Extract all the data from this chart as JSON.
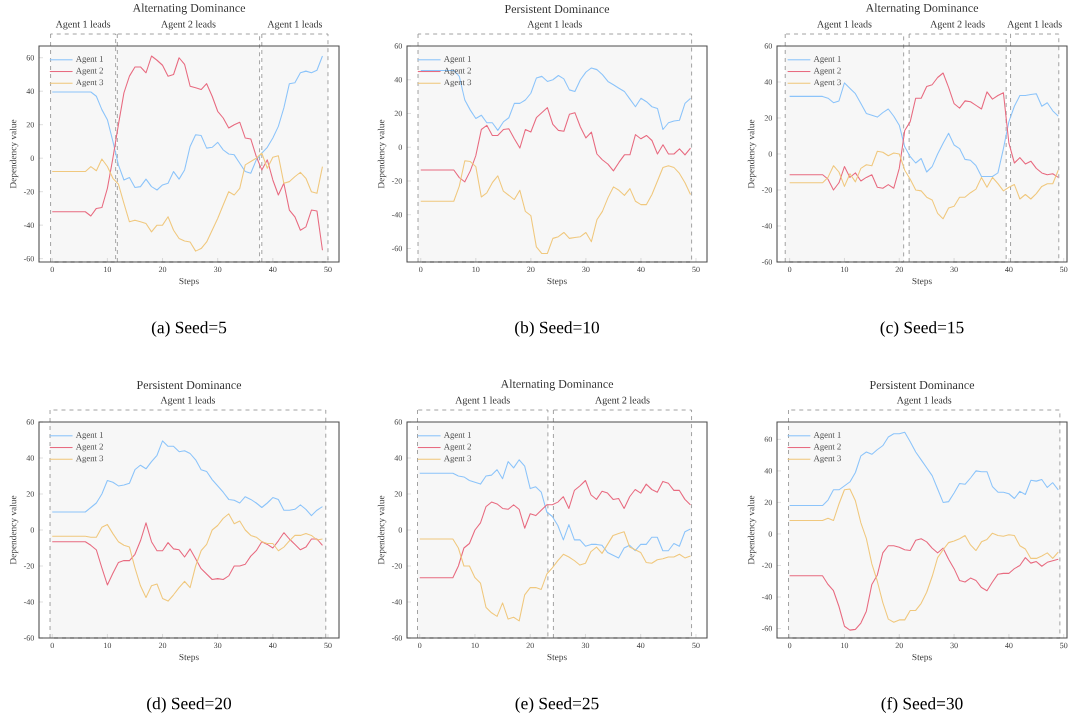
{
  "chart_data": [
    {
      "type": "line",
      "title": "Alternating Dominance",
      "xlabel": "Steps",
      "ylabel": "Dependency value",
      "legend": "top left",
      "xlim": [
        -2.4,
        52
      ],
      "ylim": [
        -62,
        67
      ],
      "xticks": [
        0,
        10,
        20,
        30,
        40,
        50
      ],
      "yticks": [
        -60,
        -40,
        -20,
        0,
        20,
        40,
        60
      ],
      "bands": [
        {
          "axis": "x",
          "from": -0.3,
          "to": 11.5,
          "label": "Agent 1 leads"
        },
        {
          "axis": "x",
          "from": 11.8,
          "to": 37.6,
          "label": "Agent 2 leads"
        },
        {
          "axis": "x",
          "from": 38,
          "to": 50,
          "label": "Agent 1 leads"
        }
      ],
      "annotations": [
        "(a) Seed=5"
      ],
      "x": [
        0,
        1,
        2,
        3,
        4,
        5,
        6,
        7,
        8,
        9,
        10,
        11,
        12,
        13,
        14,
        15,
        16,
        17,
        18,
        19,
        20,
        21,
        22,
        23,
        24,
        25,
        26,
        27,
        28,
        29,
        30,
        31,
        32,
        33,
        34,
        35,
        36,
        37,
        38,
        39,
        40,
        41,
        42,
        43,
        44,
        45,
        46,
        47,
        48,
        49
      ],
      "series": [
        {
          "name": "Agent 1",
          "color": "#8cc4fa",
          "values": [
            39.5,
            39.5,
            39.5,
            39.5,
            39.5,
            39.5,
            39.5,
            39.5,
            37,
            29,
            23,
            10,
            -4,
            -13,
            -11.5,
            -17.5,
            -17,
            -12.5,
            -17,
            -19,
            -16,
            -15,
            -8,
            -12.5,
            -7,
            7,
            14,
            13.5,
            6,
            6.5,
            9.5,
            5,
            2.5,
            2,
            -3,
            -8,
            -9,
            -1,
            3,
            6.5,
            12,
            19,
            30,
            44.5,
            45,
            51,
            52,
            51,
            52.5,
            61
          ]
        },
        {
          "name": "Agent 2",
          "color": "#e86b80",
          "values": [
            -32,
            -32,
            -32,
            -32,
            -32,
            -32,
            -32,
            -34.5,
            -30,
            -29.5,
            -18,
            0,
            20,
            39,
            49,
            54.5,
            54.5,
            51,
            61,
            58.5,
            55.5,
            49,
            50,
            60,
            56,
            43,
            42,
            41,
            44.5,
            37,
            28,
            24,
            18,
            20,
            21.5,
            12,
            11.5,
            1,
            -7,
            -1,
            -13,
            -22,
            -15,
            -31,
            -35,
            -43,
            -41,
            -31,
            -31.5,
            -55
          ]
        },
        {
          "name": "Agent 3",
          "color": "#f0c87e",
          "values": [
            -8,
            -8,
            -8,
            -8,
            -8,
            -8,
            -8,
            -5,
            -7.5,
            -0.5,
            -5,
            -12,
            -15.5,
            -27,
            -38,
            -37,
            -38,
            -39,
            -44,
            -40,
            -40,
            -35,
            -43,
            -48,
            -49.5,
            -50,
            -55.5,
            -54,
            -50,
            -43,
            -36,
            -28,
            -20,
            -22,
            -18,
            -4,
            -2,
            0,
            3,
            -6,
            0.5,
            1.5,
            -15,
            -14,
            -11,
            -8.5,
            -12,
            -20,
            -21,
            -5
          ]
        }
      ]
    },
    {
      "type": "line",
      "title": "Persistent Dominance",
      "xlabel": "Steps",
      "ylabel": "Dependency value",
      "legend": "top left",
      "xlim": [
        -2.5,
        52
      ],
      "ylim": [
        -68,
        60
      ],
      "xticks": [
        0,
        10,
        20,
        30,
        40,
        50
      ],
      "yticks": [
        -60,
        -40,
        -20,
        0,
        20,
        40,
        60
      ],
      "bands": [
        {
          "axis": "x",
          "from": -0.5,
          "to": 49.2,
          "label": "Agent 1 leads"
        }
      ],
      "annotations": [
        "(b) Seed=10"
      ],
      "x": [
        0,
        1,
        2,
        3,
        4,
        5,
        6,
        7,
        8,
        9,
        10,
        11,
        12,
        13,
        14,
        15,
        16,
        17,
        18,
        19,
        20,
        21,
        22,
        23,
        24,
        25,
        26,
        27,
        28,
        29,
        30,
        31,
        32,
        33,
        34,
        35,
        36,
        37,
        38,
        39,
        40,
        41,
        42,
        43,
        44,
        45,
        46,
        47,
        48,
        49
      ],
      "series": [
        {
          "name": "Agent 1",
          "color": "#8cc4fa",
          "values": [
            45.5,
            45.5,
            45.5,
            45.5,
            45.5,
            45.5,
            45.5,
            42,
            28,
            22,
            17,
            19,
            14.5,
            14.5,
            10,
            15,
            17.5,
            26,
            26,
            28,
            32,
            41,
            42,
            39,
            40,
            42.5,
            40.5,
            34,
            33,
            40,
            44.5,
            47,
            46,
            43,
            39,
            37,
            35,
            33,
            28.5,
            24,
            29,
            27,
            24,
            23,
            10.5,
            14.5,
            15.5,
            16,
            26,
            29
          ]
        },
        {
          "name": "Agent 2",
          "color": "#e86b80",
          "values": [
            -13.5,
            -13.5,
            -13.5,
            -13.5,
            -13.5,
            -13.5,
            -13.5,
            -18,
            -20.5,
            -14,
            -5,
            10.5,
            13,
            7,
            7,
            10.5,
            11,
            5,
            -0.5,
            10.5,
            9,
            17.5,
            20.5,
            23.5,
            13.5,
            10,
            9.5,
            19.5,
            20.5,
            12,
            5.5,
            9,
            -4,
            -7.5,
            -10,
            -14,
            -9,
            -4.5,
            -4.5,
            7.5,
            5,
            7,
            4,
            -4,
            1.5,
            -4,
            -4,
            -1,
            -4.5,
            -0.5
          ]
        },
        {
          "name": "Agent 3",
          "color": "#f0c87e",
          "values": [
            -32,
            -32,
            -32,
            -32,
            -32,
            -32,
            -32,
            -23,
            -8,
            -8.5,
            -11.5,
            -29.5,
            -27,
            -21,
            -17,
            -26,
            -28.5,
            -31,
            -25.5,
            -38,
            -40.5,
            -59,
            -63,
            -63,
            -54,
            -53,
            -50.5,
            -54,
            -53.5,
            -53,
            -50.5,
            -56,
            -43,
            -38,
            -30,
            -23.5,
            -25.5,
            -28.5,
            -24.5,
            -32,
            -34,
            -34,
            -28,
            -20,
            -12,
            -11,
            -12,
            -15.5,
            -21,
            -28
          ]
        }
      ]
    },
    {
      "type": "line",
      "title": "Alternating Dominance",
      "xlabel": "Steps",
      "ylabel": "Dependency value",
      "legend": "top left",
      "xlim": [
        -2.3,
        50.6
      ],
      "ylim": [
        -60,
        60
      ],
      "xticks": [
        0,
        10,
        20,
        30,
        40,
        50
      ],
      "yticks": [
        -60,
        -40,
        -20,
        0,
        20,
        40,
        60
      ],
      "bands": [
        {
          "axis": "x",
          "from": -0.8,
          "to": 20.8,
          "label": "Agent 1 leads"
        },
        {
          "axis": "x",
          "from": 21.8,
          "to": 39.5,
          "label": "Agent 2 leads"
        },
        {
          "axis": "x",
          "from": 40.3,
          "to": 49.1,
          "label": "Agent 1 leads"
        }
      ],
      "annotations": [
        "(c) Seed=15"
      ],
      "x": [
        0,
        1,
        2,
        3,
        4,
        5,
        6,
        7,
        8,
        9,
        10,
        11,
        12,
        13,
        14,
        15,
        16,
        17,
        18,
        19,
        20,
        21,
        22,
        23,
        24,
        25,
        26,
        27,
        28,
        29,
        30,
        31,
        32,
        33,
        34,
        35,
        36,
        37,
        38,
        39,
        40,
        41,
        42,
        43,
        44,
        45,
        46,
        47,
        48,
        49
      ],
      "series": [
        {
          "name": "Agent 1",
          "color": "#8cc4fa",
          "values": [
            32,
            32,
            32,
            32,
            32,
            32,
            32,
            31,
            28.5,
            29.5,
            39.5,
            36.5,
            33.5,
            28,
            22.5,
            21.5,
            20.5,
            23,
            25,
            21,
            16,
            4,
            -1.5,
            -5,
            -2.5,
            -10,
            -7,
            0,
            6,
            11.5,
            5,
            3,
            -3,
            -3.5,
            -6.5,
            -12.5,
            -12.5,
            -12.5,
            -10.5,
            3,
            18,
            26.5,
            32.5,
            32.5,
            33,
            33.5,
            26.5,
            28.5,
            24,
            21
          ]
        },
        {
          "name": "Agent 2",
          "color": "#e86b80",
          "values": [
            -11.5,
            -11.5,
            -11.5,
            -11.5,
            -11.5,
            -11.5,
            -11.5,
            -14,
            -20,
            -16,
            -7,
            -13,
            -10.5,
            -15,
            -13,
            -11.5,
            -18.5,
            -19,
            -17,
            -19,
            -8,
            13,
            18,
            31,
            31,
            37.5,
            38.5,
            42.5,
            45,
            37,
            28,
            25.5,
            29.5,
            29,
            27,
            25,
            34.5,
            30.5,
            32.5,
            34,
            6,
            -5,
            -2,
            -5.5,
            -4,
            -8,
            -10.5,
            -11.5,
            -11,
            -13
          ]
        },
        {
          "name": "Agent 3",
          "color": "#f0c87e",
          "values": [
            -16,
            -16,
            -16,
            -16,
            -16,
            -16,
            -16,
            -13,
            -6.5,
            -10,
            -18,
            -11,
            -15.5,
            -8,
            -6,
            -6.5,
            1.5,
            1,
            -1,
            0.5,
            0,
            -9,
            -14,
            -20,
            -20.5,
            -24,
            -25.5,
            -33,
            -36,
            -30,
            -29,
            -24,
            -24,
            -21.5,
            -19.5,
            -13,
            -18.5,
            -13,
            -16.5,
            -20.5,
            -18.5,
            -17,
            -25,
            -22.5,
            -25,
            -22,
            -18,
            -16.5,
            -16.5,
            -9
          ]
        }
      ]
    },
    {
      "type": "line",
      "title": "Persistent Dominance",
      "xlabel": "Steps",
      "ylabel": "Dependency value",
      "legend": "top left",
      "xlim": [
        -2.4,
        52
      ],
      "ylim": [
        -60,
        60
      ],
      "xticks": [
        0,
        10,
        20,
        30,
        40,
        50
      ],
      "yticks": [
        -60,
        -40,
        -20,
        0,
        20,
        40,
        60
      ],
      "bands": [
        {
          "axis": "x",
          "from": -0.4,
          "to": 49.6,
          "label": "Agent 1 leads"
        }
      ],
      "annotations": [
        "(d) Seed=20"
      ],
      "x": [
        0,
        1,
        2,
        3,
        4,
        5,
        6,
        7,
        8,
        9,
        10,
        11,
        12,
        13,
        14,
        15,
        16,
        17,
        18,
        19,
        20,
        21,
        22,
        23,
        24,
        25,
        26,
        27,
        28,
        29,
        30,
        31,
        32,
        33,
        34,
        35,
        36,
        37,
        38,
        39,
        40,
        41,
        42,
        43,
        44,
        45,
        46,
        47,
        48,
        49
      ],
      "series": [
        {
          "name": "Agent 1",
          "color": "#8cc4fa",
          "values": [
            10,
            10,
            10,
            10,
            10,
            10,
            10,
            12.5,
            15,
            20,
            27.5,
            26.5,
            24.5,
            25,
            26,
            33.5,
            36,
            34,
            38,
            41.5,
            49.5,
            46.5,
            46.5,
            43.5,
            44,
            42.5,
            39,
            33.5,
            32.5,
            28,
            24.5,
            21,
            17,
            16.5,
            15,
            18.5,
            17,
            15,
            12.5,
            15,
            18,
            17,
            11,
            11,
            11.5,
            14,
            11.5,
            8,
            11,
            13
          ]
        },
        {
          "name": "Agent 2",
          "color": "#e86b80",
          "values": [
            -6.5,
            -6.5,
            -6.5,
            -6.5,
            -6.5,
            -6.5,
            -6.5,
            -8.5,
            -11,
            -21,
            -30.5,
            -24,
            -18,
            -17,
            -17,
            -13.5,
            -6,
            4,
            -6.5,
            -11.5,
            -11.5,
            -7,
            -10.5,
            -11,
            -15,
            -10.5,
            -16,
            -21.5,
            -24.5,
            -27.5,
            -27,
            -27.5,
            -25.5,
            -20,
            -20,
            -19,
            -14.5,
            -11.5,
            -6.5,
            -8,
            -10,
            -6,
            -1.5,
            -5,
            -8,
            -11,
            -9.5,
            -5,
            -5,
            -8.5
          ]
        },
        {
          "name": "Agent 3",
          "color": "#f0c87e",
          "values": [
            -3.5,
            -3.5,
            -3.5,
            -3.5,
            -3.5,
            -3.5,
            -3.5,
            -4,
            -4,
            1.5,
            3,
            -2,
            -6.5,
            -8.5,
            -9.5,
            -21,
            -31,
            -37.5,
            -31,
            -30,
            -38,
            -39.5,
            -36,
            -32,
            -28.5,
            -32,
            -20,
            -11.5,
            -8,
            0,
            2.5,
            6.5,
            9,
            3.5,
            5,
            0,
            -3,
            -4,
            -6.5,
            -7.5,
            -7.5,
            -11.5,
            -9.5,
            -6,
            -3,
            -3,
            -2,
            -3,
            -5.5,
            -5
          ]
        }
      ]
    },
    {
      "type": "line",
      "title": "Alternating Dominance",
      "xlabel": "Steps",
      "ylabel": "Dependency value",
      "legend": "top left",
      "xlim": [
        -2.3,
        52
      ],
      "ylim": [
        -60,
        60
      ],
      "xticks": [
        0,
        10,
        20,
        30,
        40,
        50
      ],
      "yticks": [
        -60,
        -40,
        -20,
        0,
        20,
        40,
        60
      ],
      "bands": [
        {
          "axis": "x",
          "from": -0.4,
          "to": 23.2,
          "label": "Agent 1 leads"
        },
        {
          "axis": "x",
          "from": 24.2,
          "to": 49.2,
          "label": "Agent 2 leads"
        }
      ],
      "annotations": [
        "(e) Seed=25"
      ],
      "x": [
        0,
        1,
        2,
        3,
        4,
        5,
        6,
        7,
        8,
        9,
        10,
        11,
        12,
        13,
        14,
        15,
        16,
        17,
        18,
        19,
        20,
        21,
        22,
        23,
        24,
        25,
        26,
        27,
        28,
        29,
        30,
        31,
        32,
        33,
        34,
        35,
        36,
        37,
        38,
        39,
        40,
        41,
        42,
        43,
        44,
        45,
        46,
        47,
        48,
        49
      ],
      "series": [
        {
          "name": "Agent 1",
          "color": "#8cc4fa",
          "values": [
            31.5,
            31.5,
            31.5,
            31.5,
            31.5,
            31.5,
            31.5,
            30,
            29.5,
            27.5,
            26.5,
            25.5,
            30,
            30.5,
            33.5,
            28.5,
            38,
            34.5,
            39,
            35.5,
            23,
            24,
            21,
            10,
            7.5,
            2.5,
            -5.5,
            3,
            -5.5,
            -5.5,
            -9,
            -8,
            -8,
            -8.5,
            -12.5,
            -14,
            -15.5,
            -10,
            -8.5,
            -11.5,
            -8,
            -8,
            -4,
            -4,
            -11.5,
            -11.5,
            -7.5,
            -9,
            -1,
            0.5
          ]
        },
        {
          "name": "Agent 2",
          "color": "#e86b80",
          "values": [
            -26.5,
            -26.5,
            -26.5,
            -26.5,
            -26.5,
            -26.5,
            -26.5,
            -20,
            -10,
            -7.5,
            0,
            4,
            13,
            15.5,
            14.5,
            12,
            11.5,
            14,
            11.5,
            1,
            9,
            8,
            11,
            14,
            14,
            15.5,
            18.5,
            12,
            22,
            24.5,
            27.5,
            19.5,
            17,
            21.5,
            20.5,
            17,
            17.5,
            12,
            18.5,
            22.5,
            20.5,
            25.5,
            22.5,
            21,
            27,
            26,
            22,
            22,
            17,
            14
          ]
        },
        {
          "name": "Agent 3",
          "color": "#f0c87e",
          "values": [
            -5,
            -5,
            -5,
            -5,
            -5,
            -5,
            -5,
            -10,
            -20,
            -20,
            -26.5,
            -29.5,
            -43,
            -46,
            -48,
            -40.5,
            -49.5,
            -48.5,
            -50.5,
            -36,
            -32,
            -32,
            -33,
            -24.5,
            -21,
            -17,
            -13.5,
            -15,
            -17,
            -19.5,
            -18.5,
            -12,
            -9.5,
            -13,
            -8,
            -3,
            -2,
            -1,
            -9.5,
            -11,
            -12.5,
            -18,
            -18.5,
            -16.5,
            -16,
            -15,
            -15,
            -13.5,
            -15.5,
            -14.5
          ]
        }
      ]
    },
    {
      "type": "line",
      "title": "Persistent Dominance",
      "xlabel": "Steps",
      "ylabel": "Dependency value",
      "legend": "top left",
      "xlim": [
        -2.3,
        50.6
      ],
      "ylim": [
        -66,
        71
      ],
      "xticks": [
        0,
        10,
        20,
        30,
        40,
        50
      ],
      "yticks": [
        -60,
        -40,
        -20,
        0,
        20,
        40,
        60
      ],
      "bands": [
        {
          "axis": "x",
          "from": -0.2,
          "to": 49.3,
          "label": "Agent 1 leads"
        }
      ],
      "annotations": [
        "(f) Seed=30"
      ],
      "x": [
        0,
        1,
        2,
        3,
        4,
        5,
        6,
        7,
        8,
        9,
        10,
        11,
        12,
        13,
        14,
        15,
        16,
        17,
        18,
        19,
        20,
        21,
        22,
        23,
        24,
        25,
        26,
        27,
        28,
        29,
        30,
        31,
        32,
        33,
        34,
        35,
        36,
        37,
        38,
        39,
        40,
        41,
        42,
        43,
        44,
        45,
        46,
        47,
        48,
        49
      ],
      "series": [
        {
          "name": "Agent 1",
          "color": "#8cc4fa",
          "values": [
            18,
            18,
            18,
            18,
            18,
            18,
            18,
            21.5,
            28,
            28,
            30.5,
            33,
            39,
            49.5,
            52,
            50.5,
            53.5,
            56,
            61.5,
            63.5,
            63.5,
            64.5,
            58.5,
            52,
            47,
            42,
            37,
            28.5,
            20,
            20.5,
            26,
            32,
            31.5,
            35.5,
            40,
            39.5,
            39.5,
            30,
            26.5,
            26.5,
            25.5,
            22.5,
            27,
            25,
            34,
            33.5,
            34.5,
            29.5,
            32.5,
            28
          ]
        },
        {
          "name": "Agent 2",
          "color": "#e86b80",
          "values": [
            -26.5,
            -26.5,
            -26.5,
            -26.5,
            -26.5,
            -26.5,
            -26.5,
            -32,
            -36,
            -46,
            -58.5,
            -61,
            -60.5,
            -56.5,
            -49,
            -32,
            -26,
            -12,
            -7.5,
            -7.5,
            -8.5,
            -10,
            -10.5,
            -4,
            -3,
            -5,
            -9,
            -12,
            -9,
            -16,
            -22,
            -29.5,
            -30.5,
            -28,
            -29.5,
            -34,
            -36,
            -30.5,
            -25.5,
            -25,
            -25,
            -22,
            -20,
            -15,
            -18.5,
            -17.5,
            -20.5,
            -18,
            -17,
            -16
          ]
        },
        {
          "name": "Agent 3",
          "color": "#f0c87e",
          "values": [
            8.5,
            8.5,
            8.5,
            8.5,
            8.5,
            8.5,
            8.5,
            10,
            8.5,
            19,
            28,
            28.5,
            21,
            7,
            -3,
            -19,
            -30,
            -43.5,
            -54,
            -56,
            -54.5,
            -54.5,
            -48.5,
            -48.5,
            -44,
            -37,
            -27,
            -15,
            -10,
            -5.5,
            -4.5,
            -3,
            -1,
            -7,
            -10.5,
            -5,
            -3.5,
            0.5,
            -1,
            -1.5,
            -0.5,
            -1,
            -7.5,
            -9.5,
            -15.5,
            -15.5,
            -14,
            -12,
            -15.5,
            -11.5
          ]
        }
      ]
    }
  ]
}
